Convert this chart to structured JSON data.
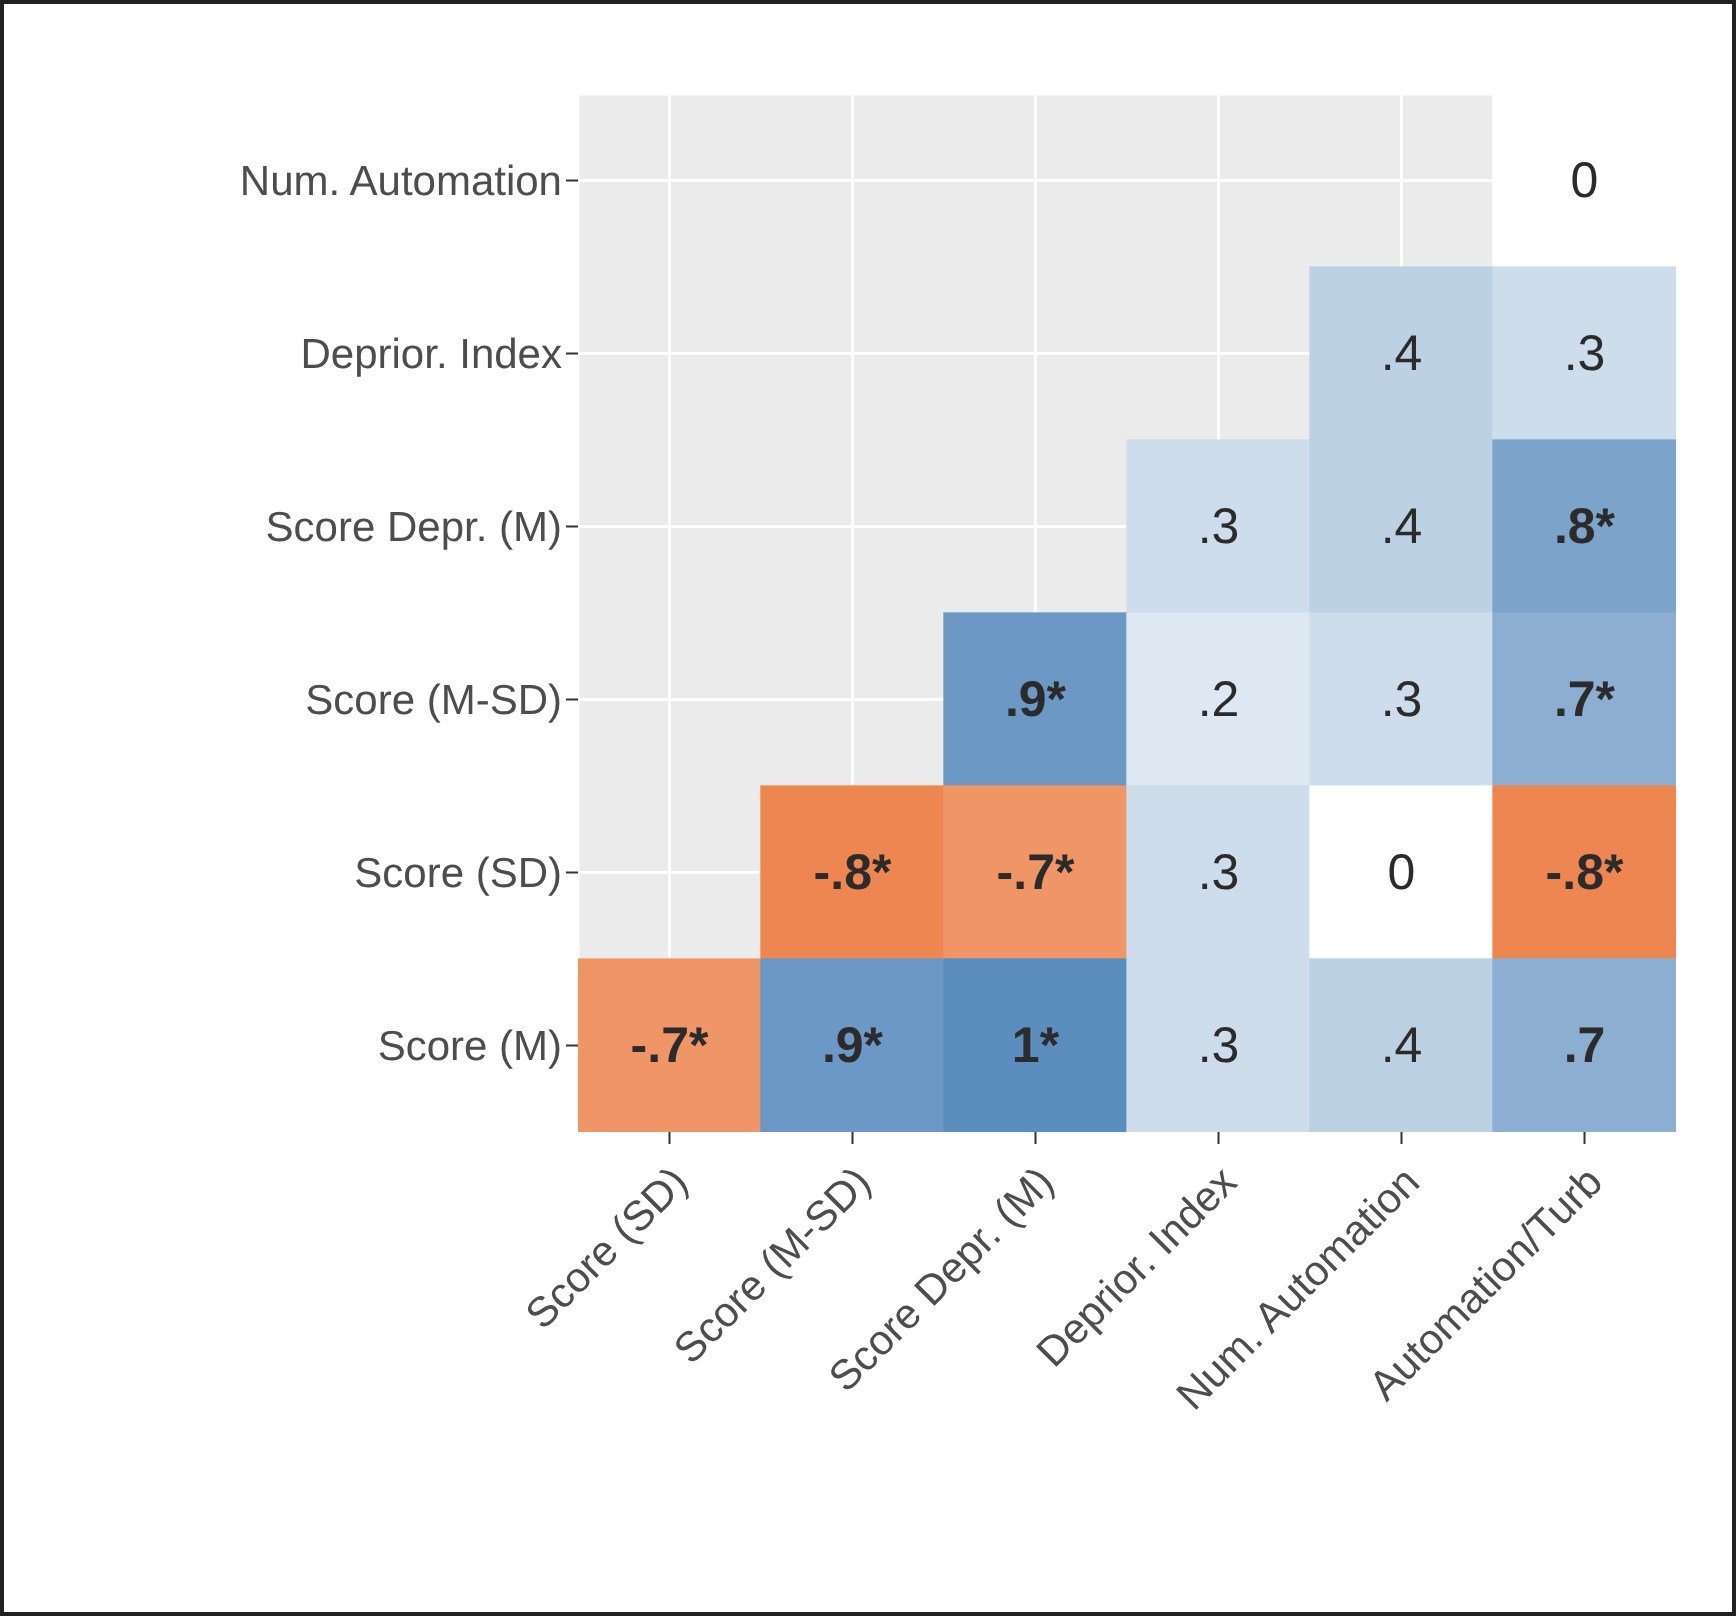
{
  "chart_data": {
    "type": "heatmap",
    "categories": [
      "Score (SD)",
      "Score (M-SD)",
      "Score Depr. (M)",
      "Deprior. Index",
      "Num. Automation",
      "Automation/Turb"
    ],
    "y_categories": [
      "Num. Automation",
      "Deprior. Index",
      "Score Depr. (M)",
      "Score (M-SD)",
      "Score (SD)",
      "Score (M)"
    ],
    "cells": [
      [
        null,
        null,
        null,
        null,
        null,
        0
      ],
      [
        null,
        null,
        null,
        null,
        0.4,
        0.3
      ],
      [
        null,
        null,
        null,
        0.3,
        0.4,
        0.8
      ],
      [
        null,
        null,
        0.9,
        0.2,
        0.3,
        0.7
      ],
      [
        null,
        -0.8,
        -0.7,
        0.3,
        0,
        -0.8
      ],
      [
        -0.7,
        0.9,
        1,
        0.3,
        0.4,
        0.7
      ]
    ],
    "cell_labels": [
      [
        null,
        null,
        null,
        null,
        null,
        "0"
      ],
      [
        null,
        null,
        null,
        null,
        ".4",
        ".3"
      ],
      [
        null,
        null,
        null,
        ".3",
        ".4",
        ".8*"
      ],
      [
        null,
        null,
        ".9*",
        ".2",
        ".3",
        ".7*"
      ],
      [
        null,
        "-.8*",
        "-.7*",
        ".3",
        "0",
        "-.8*"
      ],
      [
        "-.7*",
        ".9*",
        "1*",
        ".3",
        ".4",
        ".7"
      ]
    ],
    "grid": true
  }
}
